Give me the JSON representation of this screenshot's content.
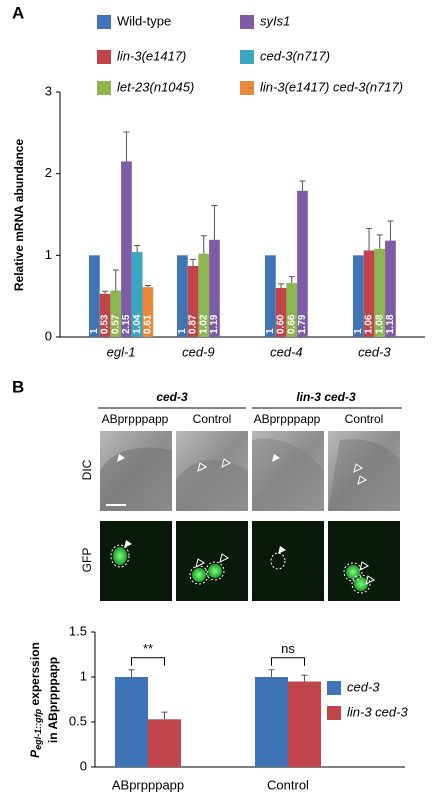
{
  "figure": {
    "panel_labels": [
      "A",
      "B"
    ],
    "images": {
      "groups": [
        "ced-3",
        "lin-3 ced-3"
      ],
      "columns": [
        "ABprpppapp",
        "Control",
        "ABprpppapp",
        "Control"
      ],
      "rows": [
        "DIC",
        "GFP"
      ]
    }
  },
  "chart_data": [
    {
      "type": "bar",
      "ylabel": "Relative mRNA abundance",
      "categories": [
        "egl-1",
        "ced-9",
        "ced-4",
        "ced-3"
      ],
      "series": [
        {
          "name": "Wild-type",
          "color": "#3e73b5",
          "values": [
            1,
            1,
            1,
            1
          ],
          "value_labels": [
            "1",
            "1",
            "1",
            "1"
          ],
          "errors": [
            null,
            null,
            null,
            null
          ]
        },
        {
          "name": "lin-3(e1417)",
          "color": "#c0444a",
          "values": [
            0.53,
            0.87,
            0.6,
            1.06
          ],
          "value_labels": [
            "0.53",
            "0.87",
            "0.60",
            "1.06"
          ],
          "errors": [
            0.03,
            0.08,
            0.05,
            0.27
          ]
        },
        {
          "name": "let-23(n1045)",
          "color": "#8db551",
          "values": [
            0.57,
            1.02,
            0.66,
            1.08
          ],
          "value_labels": [
            "0.57",
            "1.02",
            "0.66",
            "1.08"
          ],
          "errors": [
            0.25,
            0.22,
            0.08,
            0.17
          ]
        },
        {
          "name": "syIs1",
          "color": "#7d5ba6",
          "values": [
            2.15,
            1.19,
            1.79,
            1.18
          ],
          "value_labels": [
            "2.15",
            "1.19",
            "1.79",
            "1.18"
          ],
          "errors": [
            0.36,
            0.42,
            0.12,
            0.24
          ]
        },
        {
          "name": "ced-3(n717)",
          "color": "#3aa6c0",
          "values": [
            1.04,
            null,
            null,
            null
          ],
          "value_labels": [
            "1.04",
            null,
            null,
            null
          ],
          "errors": [
            0.08,
            null,
            null,
            null
          ]
        },
        {
          "name": "lin-3(e1417) ced-3(n717)",
          "color": "#e8893a",
          "values": [
            0.61,
            null,
            null,
            null
          ],
          "value_labels": [
            "0.61",
            null,
            null,
            null
          ],
          "errors": [
            0.02,
            null,
            null,
            null
          ]
        }
      ],
      "ylim": [
        0,
        3
      ],
      "yticks": [
        0,
        1,
        2,
        3
      ],
      "grid": false
    },
    {
      "type": "bar",
      "ylabel": {
        "p": "P",
        "sub": "egl-1::gfp",
        "rest": " experssion",
        "line2": "in ABprpppapp"
      },
      "categories": [
        "ABprpppapp",
        "Control"
      ],
      "series": [
        {
          "name": "ced-3",
          "color": "#3e73b5",
          "values": [
            1,
            1
          ],
          "errors": [
            0.08,
            0.08
          ]
        },
        {
          "name": "lin-3 ced-3",
          "color": "#c0444a",
          "values": [
            0.53,
            0.95
          ],
          "errors": [
            0.08,
            0.07
          ]
        }
      ],
      "annotations": [
        "**",
        "ns"
      ],
      "ylim": [
        0,
        1.5
      ],
      "yticks": [
        0,
        0.5,
        1,
        1.5
      ],
      "grid": false
    }
  ]
}
